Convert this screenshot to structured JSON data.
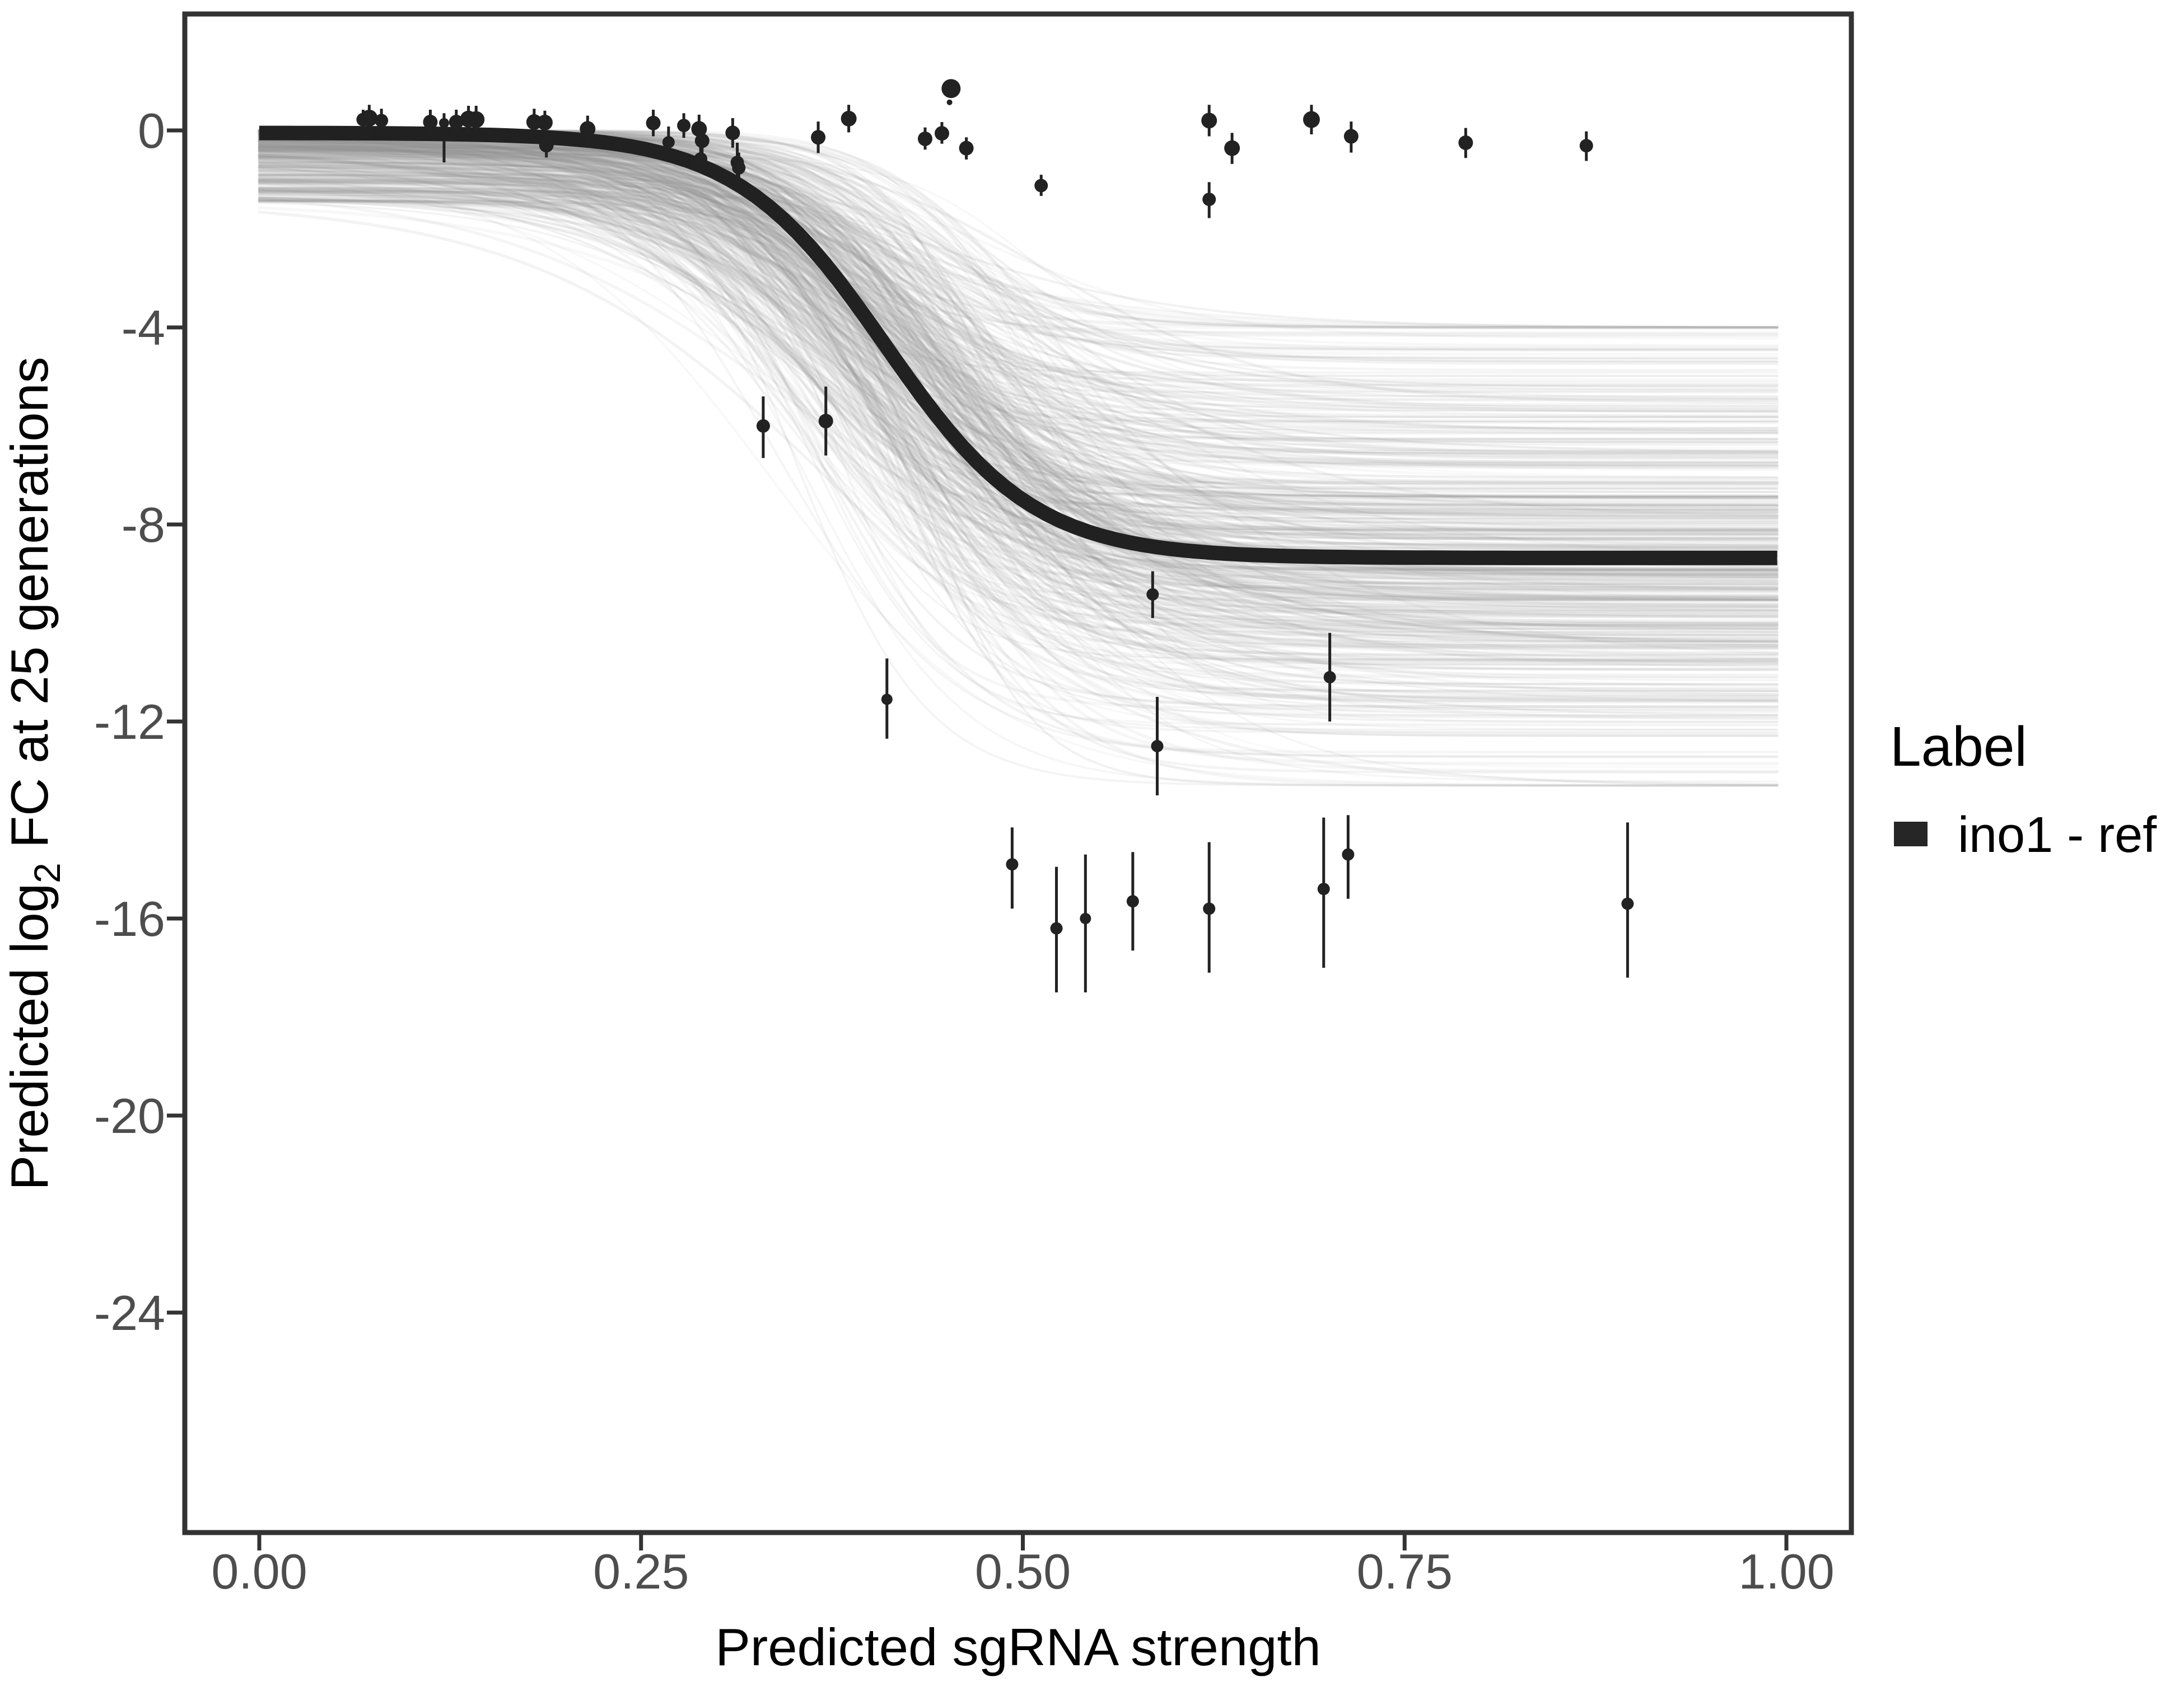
{
  "chart_data": {
    "type": "scatter",
    "title": "",
    "xlabel": "Predicted sgRNA strength",
    "ylabel_parts": {
      "pre": "Predicted  log",
      "sub": "2",
      "post": " FC at 25 generations"
    },
    "xlim": [
      -0.05,
      1.04
    ],
    "ylim": [
      -28.5,
      2.4
    ],
    "grid": "off",
    "x_ticks": {
      "values": [
        0.0,
        0.25,
        0.5,
        0.75,
        1.0
      ],
      "labels": [
        "0.00",
        "0.25",
        "0.50",
        "0.75",
        "1.00"
      ]
    },
    "y_ticks": {
      "values": [
        0,
        -4,
        -8,
        -12,
        -16,
        -20,
        -24
      ],
      "labels": [
        "0",
        "-4",
        "-8",
        "-12",
        "-16",
        "-20",
        "-24"
      ]
    },
    "legend": {
      "title": "Label",
      "position": "right",
      "items": [
        {
          "label": "ino1 - ref",
          "color": "#262626"
        }
      ]
    },
    "colors": {
      "point": "#222222",
      "ref_curve": "#212121",
      "posterior_curve": "#909090",
      "axis": "#333333",
      "tick_text": "#4d4d4d"
    },
    "ref_curve": {
      "label": "ino1 - ref",
      "model": "logistic",
      "baseline": -0.05,
      "plateau": -8.68,
      "midpoint": 0.41,
      "steepness": 20.5,
      "x_start": 0.0,
      "x_end": 0.994,
      "stroke_width": 26
    },
    "posterior_band": {
      "description": "posterior sample logistic curves",
      "n": 520,
      "seed": 20,
      "baseline_range": [
        0,
        -1.45
      ],
      "plateau_mean": -8.6,
      "plateau_sd": 2.3,
      "plateau_clamp": [
        -13.3,
        -4.0
      ],
      "midpoint_mean": 0.415,
      "midpoint_sd": 0.042,
      "midpoint_clamp": [
        0.335,
        0.545
      ],
      "steepness_mean": 19,
      "steepness_sd": 5,
      "steepness_clamp": [
        10,
        30
      ],
      "x_start": 0.0,
      "x_end": 0.994
    },
    "points_columns": [
      "x",
      "y",
      "y_lo",
      "y_hi",
      "marker_radius"
    ],
    "points": [
      [
        0.068,
        0.22,
        0.02,
        0.42,
        6
      ],
      [
        0.072,
        0.25,
        -0.02,
        0.52,
        7.5
      ],
      [
        0.08,
        0.2,
        -0.05,
        0.44,
        6
      ],
      [
        0.112,
        0.17,
        -0.08,
        0.42,
        6.5
      ],
      [
        0.121,
        0.15,
        -0.65,
        0.35,
        4.5
      ],
      [
        0.129,
        0.17,
        -0.08,
        0.42,
        6.5
      ],
      [
        0.137,
        0.23,
        -0.04,
        0.5,
        7.5
      ],
      [
        0.142,
        0.22,
        -0.05,
        0.5,
        7.5
      ],
      [
        0.18,
        0.17,
        -0.1,
        0.44,
        7
      ],
      [
        0.187,
        0.16,
        -0.12,
        0.4,
        7
      ],
      [
        0.188,
        -0.3,
        -0.55,
        -0.05,
        6.5
      ],
      [
        0.215,
        0.03,
        -0.25,
        0.3,
        7
      ],
      [
        0.258,
        0.15,
        -0.12,
        0.42,
        6.5
      ],
      [
        0.268,
        -0.24,
        -0.56,
        0.08,
        5.5
      ],
      [
        0.278,
        0.1,
        -0.15,
        0.35,
        6
      ],
      [
        0.288,
        0.03,
        -0.26,
        0.32,
        7
      ],
      [
        0.29,
        -0.21,
        -0.47,
        0.05,
        6.5
      ],
      [
        0.289,
        -0.58,
        -0.86,
        -0.3,
        6
      ],
      [
        0.31,
        -0.05,
        -0.35,
        0.25,
        6.5
      ],
      [
        0.313,
        -0.65,
        -1.05,
        -0.25,
        6
      ],
      [
        0.314,
        -0.76,
        -1.07,
        -0.45,
        6
      ],
      [
        0.33,
        -6.0,
        -6.65,
        -5.4,
        6
      ],
      [
        0.366,
        -0.14,
        -0.46,
        0.18,
        6.5
      ],
      [
        0.371,
        -5.9,
        -6.6,
        -5.2,
        6.5
      ],
      [
        0.386,
        0.24,
        -0.04,
        0.52,
        7
      ],
      [
        0.411,
        -11.55,
        -12.35,
        -10.72,
        5
      ],
      [
        0.436,
        -0.17,
        -0.39,
        0.06,
        6.5
      ],
      [
        0.447,
        -0.06,
        -0.27,
        0.17,
        6.5
      ],
      [
        0.453,
        0.85,
        0.68,
        1.02,
        8.5
      ],
      [
        0.452,
        0.57,
        0.52,
        0.62,
        2.5
      ],
      [
        0.463,
        -0.36,
        -0.59,
        -0.14,
        6.5
      ],
      [
        0.493,
        -14.9,
        -15.8,
        -14.15,
        5.5
      ],
      [
        0.512,
        -1.12,
        -1.33,
        -0.9,
        6
      ],
      [
        0.522,
        -16.2,
        -17.5,
        -14.95,
        5.5
      ],
      [
        0.541,
        -16.0,
        -17.5,
        -14.7,
        5
      ],
      [
        0.572,
        -15.65,
        -16.65,
        -14.65,
        5.5
      ],
      [
        0.585,
        -9.42,
        -9.9,
        -8.95,
        5.5
      ],
      [
        0.588,
        -12.5,
        -13.5,
        -11.5,
        5.5
      ],
      [
        0.622,
        0.2,
        -0.12,
        0.52,
        7
      ],
      [
        0.622,
        -1.4,
        -1.78,
        -1.05,
        6
      ],
      [
        0.622,
        -15.8,
        -17.1,
        -14.45,
        5.5
      ],
      [
        0.637,
        -0.36,
        -0.68,
        -0.05,
        7
      ],
      [
        0.689,
        0.22,
        -0.08,
        0.52,
        7.5
      ],
      [
        0.697,
        -15.4,
        -17.0,
        -13.95,
        5.5
      ],
      [
        0.701,
        -11.1,
        -12.0,
        -10.2,
        5.5
      ],
      [
        0.713,
        -14.7,
        -15.6,
        -13.9,
        5.5
      ],
      [
        0.715,
        -0.12,
        -0.45,
        0.18,
        6.5
      ],
      [
        0.79,
        -0.25,
        -0.56,
        0.05,
        6.5
      ],
      [
        0.869,
        -0.31,
        -0.62,
        -0.02,
        6
      ],
      [
        0.896,
        -15.7,
        -17.2,
        -14.05,
        5.5
      ]
    ]
  }
}
